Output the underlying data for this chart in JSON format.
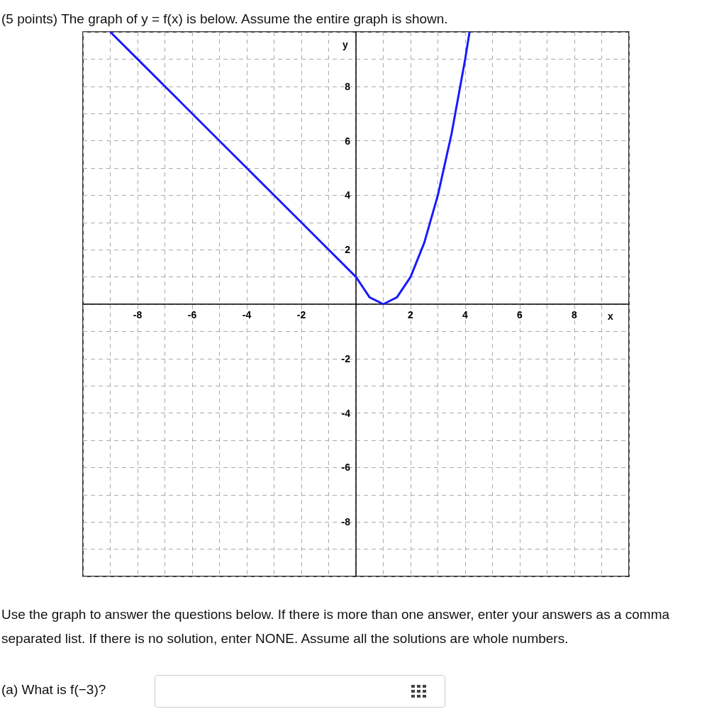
{
  "chart_data": {
    "type": "line",
    "title": "(5 points) The graph of y = f(x) is below. Assume the entire graph is shown.",
    "xlabel": "x",
    "ylabel": "y",
    "x": [
      -9,
      -8,
      -6,
      -4,
      -2,
      0,
      0.5,
      1,
      1.5,
      2,
      2.5,
      3,
      3.5,
      4,
      4.16
    ],
    "series": [
      {
        "color": "#1a1aff",
        "values": [
          10,
          9,
          7,
          5,
          3,
          1,
          0.25,
          0,
          0.25,
          1,
          2.25,
          4,
          6.25,
          9,
          10
        ]
      }
    ],
    "xlim": [
      -10,
      10
    ],
    "ylim": [
      -10,
      10
    ],
    "xticks": [
      {
        "value": -10,
        "label": null
      },
      {
        "value": -9,
        "label": null
      },
      -8,
      {
        "value": -7,
        "label": null
      },
      -6,
      {
        "value": -5,
        "label": null
      },
      -4,
      {
        "value": -3,
        "label": null
      },
      -2,
      {
        "value": -1,
        "label": null
      },
      {
        "value": 0,
        "label": null
      },
      {
        "value": 1,
        "label": null
      },
      2,
      {
        "value": 3,
        "label": null
      },
      4,
      {
        "value": 5,
        "label": null
      },
      6,
      {
        "value": 7,
        "label": null
      },
      8,
      {
        "value": 9,
        "label": null
      },
      {
        "value": 10,
        "label": null
      }
    ],
    "yticks": [
      {
        "value": -10,
        "label": null
      },
      {
        "value": -9,
        "label": null
      },
      -8,
      {
        "value": -7,
        "label": null
      },
      -6,
      {
        "value": -5,
        "label": null
      },
      -4,
      {
        "value": -3,
        "label": null
      },
      -2,
      {
        "value": -1,
        "label": null
      },
      {
        "value": 0,
        "label": null
      },
      {
        "value": 1,
        "label": null
      },
      2,
      {
        "value": 3,
        "label": null
      },
      4,
      {
        "value": 5,
        "label": null
      },
      6,
      {
        "value": 7,
        "label": null
      },
      8,
      {
        "value": 9,
        "label": null
      },
      {
        "value": 10,
        "label": null
      }
    ],
    "grid": true,
    "marker": "none",
    "line_style": "solid",
    "annotations": [
      "Use the graph to answer the questions below. If there is more than one answer, enter your answers as a comma separated list. If there is no solution, enter NONE. Assume all the solutions are whole numbers.",
      "(a) What is f(−3)?"
    ]
  }
}
